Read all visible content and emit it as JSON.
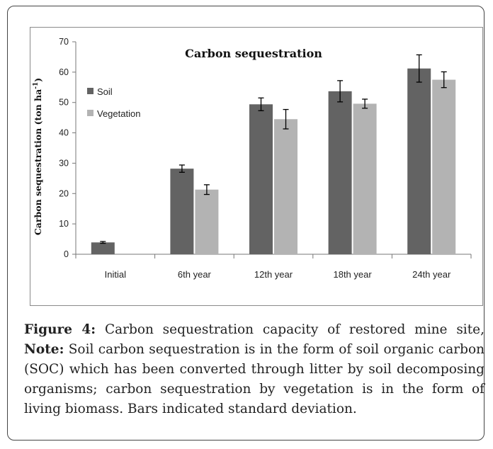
{
  "caption": {
    "figure_label": "Figure 4:",
    "text_1": " Carbon sequestration capacity of restored mine site, ",
    "note_label": "Note:",
    "text_2": " Soil carbon sequestration is in the form of soil organic carbon (SOC) which has been converted through litter by soil decomposing organisms; carbon sequestration by vegetation is in the form of living biomass. Bars indicated standard deviation."
  },
  "chart_data": {
    "type": "bar",
    "title": "Carbon sequestration",
    "ylabel": "Carbon sequestration (ton ha",
    "ylabel_sup": "-1",
    "ylabel_end": ")",
    "xlabel": "",
    "ylim": [
      0,
      70
    ],
    "yticks": [
      0,
      10,
      20,
      30,
      40,
      50,
      60,
      70
    ],
    "categories": [
      "Initial",
      "6th year",
      "12th year",
      "18th year",
      "24th year"
    ],
    "series": [
      {
        "name": "Soil",
        "color": "#636363",
        "values": [
          3.9,
          28.2,
          49.4,
          53.7,
          61.2
        ],
        "errors": [
          0.3,
          1.2,
          2.1,
          3.5,
          4.5
        ]
      },
      {
        "name": "Vegetation",
        "color": "#b3b3b3",
        "values": [
          null,
          21.3,
          44.5,
          49.6,
          57.5
        ],
        "errors": [
          null,
          1.6,
          3.2,
          1.5,
          2.6
        ]
      }
    ],
    "legend_position": "left",
    "grid": false
  }
}
